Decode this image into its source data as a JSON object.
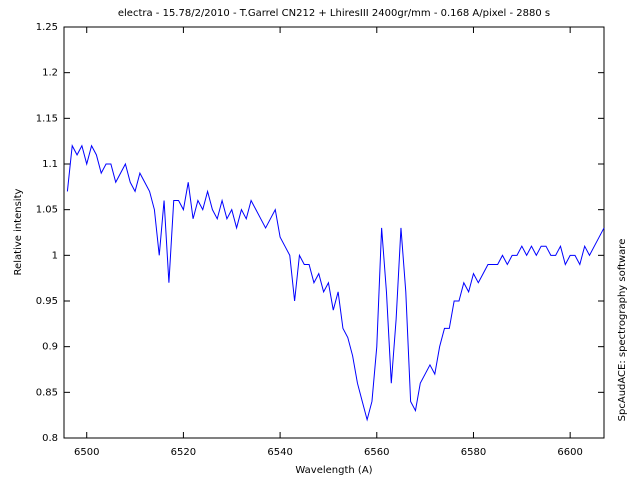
{
  "chart_data": {
    "type": "line",
    "title": "electra - 15.78/2/2010 - T.Garrel CN212 + LhiresIII 2400gr/mm - 0.168 A/pixel - 2880 s",
    "x_label": "Wavelength (A)",
    "y_label": "Relative intensity",
    "annotation": "SpcAudACE: spectrography software",
    "xlim": [
      6495.3,
      6607
    ],
    "xticks": [
      6500,
      6520,
      6540,
      6560,
      6580,
      6600
    ],
    "ylim": [
      0.8,
      1.25
    ],
    "yticks": [
      0.8,
      0.85,
      0.9,
      0.95,
      1,
      1.05,
      1.1,
      1.15,
      1.2,
      1.25
    ],
    "grid": false,
    "x": [
      6496,
      6497,
      6498,
      6499,
      6500,
      6501,
      6502,
      6503,
      6504,
      6505,
      6506,
      6507,
      6508,
      6509,
      6510,
      6511,
      6512,
      6513,
      6514,
      6515,
      6516,
      6517,
      6518,
      6519,
      6520,
      6521,
      6522,
      6523,
      6524,
      6525,
      6526,
      6527,
      6528,
      6529,
      6530,
      6531,
      6532,
      6533,
      6534,
      6535,
      6536,
      6537,
      6538,
      6539,
      6540,
      6541,
      6542,
      6543,
      6544,
      6545,
      6546,
      6547,
      6548,
      6549,
      6550,
      6551,
      6552,
      6553,
      6554,
      6555,
      6556,
      6557,
      6558,
      6559,
      6560,
      6561,
      6562,
      6563,
      6564,
      6565,
      6566,
      6567,
      6568,
      6569,
      6570,
      6571,
      6572,
      6573,
      6574,
      6575,
      6576,
      6577,
      6578,
      6579,
      6580,
      6581,
      6582,
      6583,
      6584,
      6585,
      6586,
      6587,
      6588,
      6589,
      6590,
      6591,
      6592,
      6593,
      6594,
      6595,
      6596,
      6597,
      6598,
      6599,
      6600,
      6601,
      6602,
      6603,
      6604,
      6605,
      6606,
      6607
    ],
    "series": [
      {
        "color": "#0000ff",
        "values": [
          1.07,
          1.12,
          1.11,
          1.12,
          1.1,
          1.12,
          1.11,
          1.09,
          1.1,
          1.1,
          1.08,
          1.09,
          1.1,
          1.08,
          1.07,
          1.09,
          1.08,
          1.07,
          1.05,
          1.0,
          1.06,
          0.97,
          1.06,
          1.06,
          1.05,
          1.08,
          1.04,
          1.06,
          1.05,
          1.07,
          1.05,
          1.04,
          1.06,
          1.04,
          1.05,
          1.03,
          1.05,
          1.04,
          1.06,
          1.05,
          1.04,
          1.03,
          1.04,
          1.05,
          1.02,
          1.01,
          1.0,
          0.95,
          1.0,
          0.99,
          0.99,
          0.97,
          0.98,
          0.96,
          0.97,
          0.94,
          0.96,
          0.92,
          0.91,
          0.89,
          0.86,
          0.84,
          0.82,
          0.84,
          0.9,
          1.03,
          0.96,
          0.86,
          0.93,
          1.03,
          0.96,
          0.84,
          0.83,
          0.86,
          0.87,
          0.88,
          0.87,
          0.9,
          0.92,
          0.92,
          0.95,
          0.95,
          0.97,
          0.96,
          0.98,
          0.97,
          0.98,
          0.99,
          0.99,
          0.99,
          1.0,
          0.99,
          1.0,
          1.0,
          1.01,
          1.0,
          1.01,
          1.0,
          1.01,
          1.01,
          1.0,
          1.0,
          1.01,
          0.99,
          1.0,
          1.0,
          0.99,
          1.01,
          1.0,
          1.01,
          1.02,
          1.03
        ]
      }
    ]
  }
}
